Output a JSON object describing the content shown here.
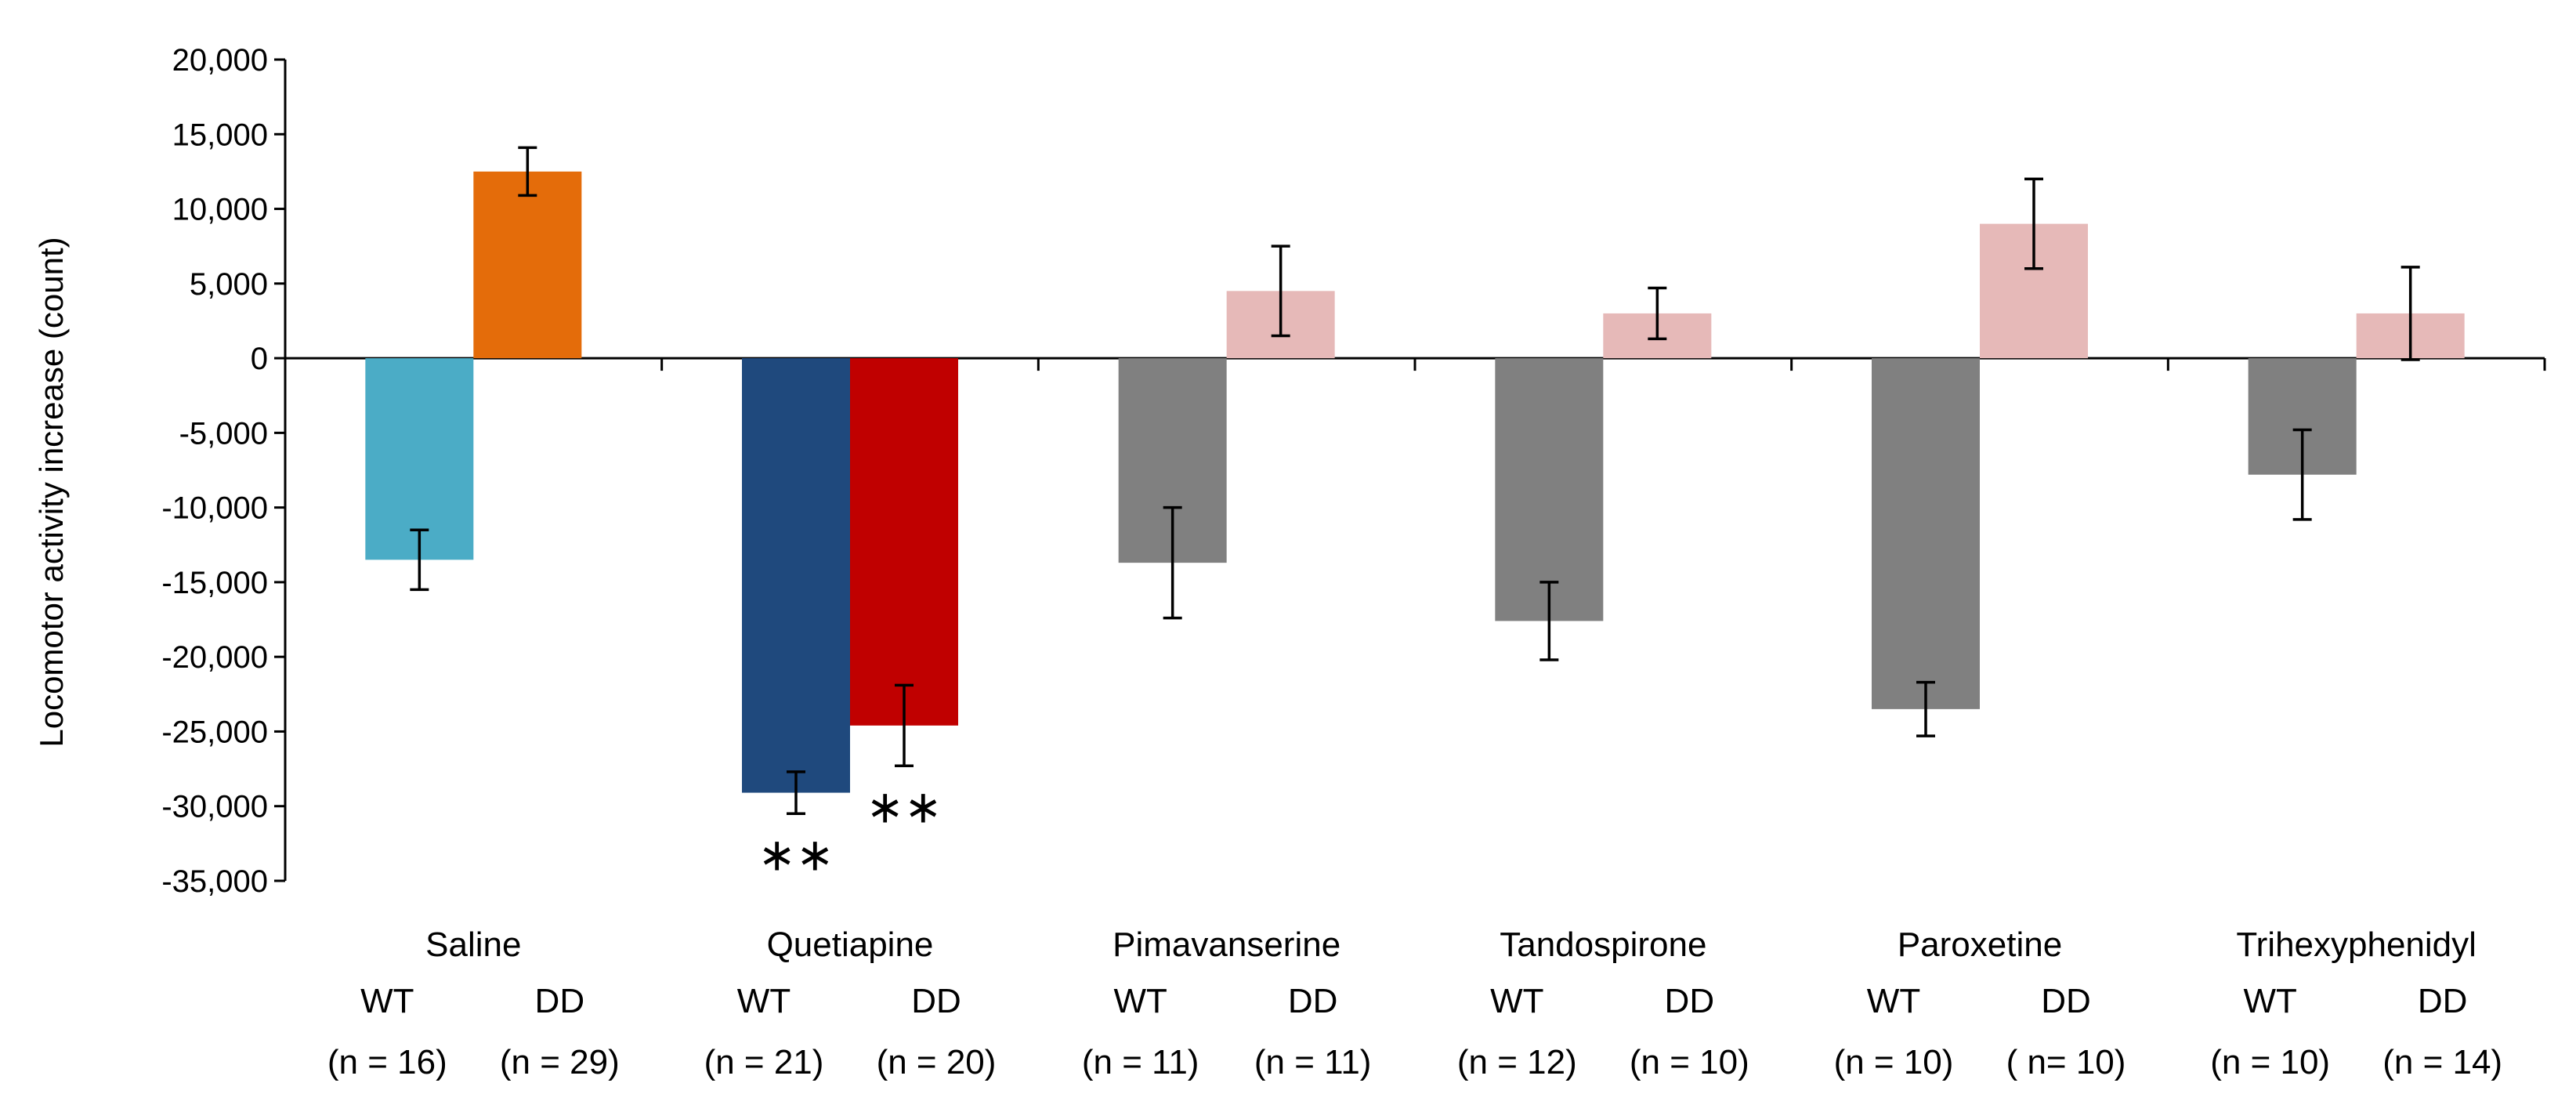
{
  "chart_data": {
    "type": "bar",
    "ylabel": "Locomotor activity increase (count)",
    "ylim": [
      -35000,
      20000
    ],
    "y_ticks": [
      20000,
      15000,
      10000,
      5000,
      0,
      -5000,
      -10000,
      -15000,
      -20000,
      -25000,
      -30000,
      -35000
    ],
    "y_tick_labels": [
      "20,000",
      "15,000",
      "10,000",
      "5,000",
      "0",
      "-5,000",
      "-10,000",
      "-15,000",
      "-20,000",
      "-25,000",
      "-30,000",
      "-35,000"
    ],
    "grid": false,
    "categories": [
      {
        "name": "Saline",
        "bars": [
          {
            "group": "WT",
            "n": "(n = 16)",
            "value": -13500,
            "error": 2000,
            "color": "#4BACC6",
            "sig": ""
          },
          {
            "group": "DD",
            "n": "(n = 29)",
            "value": 12500,
            "error": 1600,
            "color": "#E46C0A",
            "sig": ""
          }
        ]
      },
      {
        "name": "Quetiapine",
        "bars": [
          {
            "group": "WT",
            "n": "(n = 21)",
            "value": -29100,
            "error": 1400,
            "color": "#1F497D",
            "sig": "∗∗"
          },
          {
            "group": "DD",
            "n": "(n = 20)",
            "value": -24600,
            "error": 2700,
            "color": "#C00000",
            "sig": "∗∗"
          }
        ]
      },
      {
        "name": "Pimavanserine",
        "bars": [
          {
            "group": "WT",
            "n": "(n = 11)",
            "value": -13700,
            "error": 3700,
            "color": "#808080",
            "sig": ""
          },
          {
            "group": "DD",
            "n": "(n = 11)",
            "value": 4500,
            "error": 3000,
            "color": "#E6B9B8",
            "sig": ""
          }
        ]
      },
      {
        "name": "Tandospirone",
        "bars": [
          {
            "group": "WT",
            "n": "(n = 12)",
            "value": -17600,
            "error": 2600,
            "color": "#808080",
            "sig": ""
          },
          {
            "group": "DD",
            "n": "(n = 10)",
            "value": 3000,
            "error": 1700,
            "color": "#E6B9B8",
            "sig": ""
          }
        ]
      },
      {
        "name": "Paroxetine",
        "bars": [
          {
            "group": "WT",
            "n": "(n = 10)",
            "value": -23500,
            "error": 1800,
            "color": "#808080",
            "sig": ""
          },
          {
            "group": "DD",
            "n": "( n= 10)",
            "value": 9000,
            "error": 3000,
            "color": "#E6B9B8",
            "sig": ""
          }
        ]
      },
      {
        "name": "Trihexyphenidyl",
        "bars": [
          {
            "group": "WT",
            "n": "(n = 10)",
            "value": -7800,
            "error": 3000,
            "color": "#808080",
            "sig": ""
          },
          {
            "group": "DD",
            "n": "(n = 14)",
            "value": 3000,
            "error": 3100,
            "color": "#E6B9B8",
            "sig": ""
          }
        ]
      }
    ]
  }
}
